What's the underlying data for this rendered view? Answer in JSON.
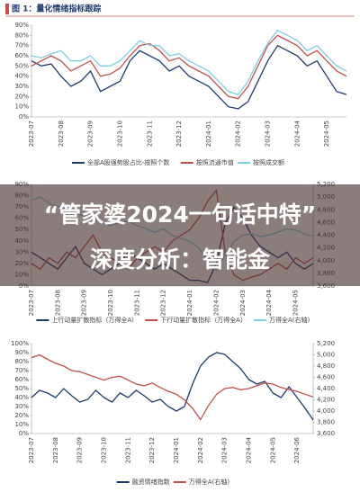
{
  "header": {
    "title": "图 1：量化情绪指标跟踪"
  },
  "banner": {
    "lines": [
      "“管家婆2024一句话中特”",
      "深度分析：智能金"
    ]
  },
  "chart_data": [
    {
      "type": "line",
      "categories": [
        "2023-07",
        null,
        null,
        "2023-08",
        null,
        null,
        "2023-09",
        null,
        null,
        "2023-10",
        null,
        null,
        "2023-11",
        null,
        null,
        "2023-12",
        null,
        null,
        "2024-01",
        null,
        null,
        "2024-02",
        null,
        null,
        "2024-03",
        null,
        null,
        "2024-04",
        null,
        null,
        "2024-05",
        null,
        null
      ],
      "ylim": [
        0,
        90
      ],
      "yticks": [
        {
          "value": 0,
          "label": "0%"
        },
        {
          "value": 10,
          "label": "10%"
        },
        {
          "value": 20,
          "label": "20%"
        },
        {
          "value": 30,
          "label": "30%"
        },
        {
          "value": 40,
          "label": "40%"
        },
        {
          "value": 50,
          "label": "50%"
        },
        {
          "value": 60,
          "label": "60%"
        },
        {
          "value": 70,
          "label": "70%"
        },
        {
          "value": 80,
          "label": "80%"
        },
        {
          "value": 90,
          "label": "90%"
        }
      ],
      "series": [
        {
          "name": "全部A股强势股占比-按照个数",
          "color": "#1f3a6e",
          "values": [
            55,
            50,
            52,
            40,
            30,
            35,
            45,
            25,
            30,
            35,
            55,
            65,
            60,
            55,
            45,
            50,
            40,
            35,
            30,
            20,
            10,
            8,
            15,
            35,
            55,
            70,
            65,
            60,
            50,
            55,
            40,
            25,
            22
          ]
        },
        {
          "name": "按照流通市值",
          "color": "#c0504d",
          "values": [
            50,
            55,
            60,
            55,
            45,
            50,
            55,
            40,
            42,
            48,
            60,
            70,
            72,
            65,
            55,
            58,
            50,
            45,
            40,
            30,
            20,
            18,
            30,
            50,
            70,
            80,
            75,
            70,
            60,
            65,
            55,
            45,
            40
          ]
        },
        {
          "name": "按照成交额",
          "color": "#7fcfe0",
          "values": [
            60,
            58,
            62,
            65,
            55,
            55,
            60,
            50,
            50,
            55,
            65,
            75,
            70,
            70,
            60,
            62,
            55,
            50,
            45,
            35,
            25,
            22,
            35,
            55,
            72,
            85,
            80,
            75,
            65,
            70,
            60,
            50,
            45
          ]
        }
      ]
    },
    {
      "type": "line",
      "categories": [
        "2023-07",
        null,
        null,
        "2023-08",
        null,
        null,
        "2023-09",
        null,
        null,
        "2023-10",
        null,
        null,
        "2023-11",
        null,
        null,
        "2023-12",
        null,
        null,
        "2024-01",
        null,
        null,
        "2024-02",
        null,
        null,
        "2024-03",
        null,
        null,
        "2024-04",
        null,
        null,
        "2024-05",
        null,
        null
      ],
      "ylim": [
        0,
        90
      ],
      "yticks": [
        {
          "value": 0,
          "label": "0%"
        },
        {
          "value": 10,
          "label": "10%"
        },
        {
          "value": 20,
          "label": "20%"
        },
        {
          "value": 30,
          "label": "30%"
        },
        {
          "value": 40,
          "label": "40%"
        },
        {
          "value": 50,
          "label": "50%"
        },
        {
          "value": 60,
          "label": "60%"
        },
        {
          "value": 70,
          "label": "70%"
        },
        {
          "value": 80,
          "label": "80%"
        },
        {
          "value": 90,
          "label": "90%"
        }
      ],
      "y2lim": [
        3600,
        5200
      ],
      "y2ticks": [
        {
          "value": 3600,
          "label": "3,600"
        },
        {
          "value": 3800,
          "label": "3,800"
        },
        {
          "value": 4000,
          "label": "4,000"
        },
        {
          "value": 4200,
          "label": "4,200"
        },
        {
          "value": 4400,
          "label": "4,400"
        },
        {
          "value": 4600,
          "label": "4,600"
        },
        {
          "value": 4800,
          "label": "4,800"
        },
        {
          "value": 5000,
          "label": "5,000"
        },
        {
          "value": 5200,
          "label": "5,200"
        }
      ],
      "series": [
        {
          "name": "上行动量扩散指标（万得全A）",
          "color": "#1f3a6e",
          "values": [
            30,
            25,
            20,
            15,
            25,
            35,
            20,
            15,
            10,
            15,
            20,
            30,
            25,
            20,
            15,
            20,
            15,
            10,
            5,
            5,
            3,
            20,
            55,
            70,
            60,
            45,
            35,
            30,
            25,
            30,
            20,
            15,
            20
          ]
        },
        {
          "name": "下行动量扩散指标（万得全A）",
          "color": "#c0504d",
          "values": [
            20,
            15,
            25,
            20,
            30,
            25,
            35,
            45,
            30,
            25,
            20,
            15,
            25,
            30,
            35,
            30,
            40,
            45,
            50,
            60,
            75,
            85,
            30,
            10,
            5,
            8,
            10,
            15,
            20,
            15,
            25,
            20,
            25
          ]
        },
        {
          "name": "万得全A(右轴)",
          "color": "#7fcfe0",
          "axis": "y2",
          "values": [
            4950,
            5000,
            4900,
            4850,
            4820,
            4750,
            4700,
            4650,
            4600,
            4550,
            4600,
            4620,
            4550,
            4500,
            4450,
            4500,
            4400,
            4350,
            4300,
            4200,
            4000,
            3850,
            4100,
            4300,
            4400,
            4420,
            4380,
            4400,
            4450,
            4500,
            4480,
            4420,
            4380
          ]
        }
      ]
    },
    {
      "type": "line",
      "categories": [
        "2023-07",
        null,
        null,
        "2023-08",
        null,
        null,
        "2023-09",
        null,
        null,
        "2023-10",
        null,
        null,
        "2023-11",
        null,
        null,
        "2023-12",
        null,
        null,
        "2024-01",
        null,
        null,
        "2024-02",
        null,
        null,
        "2024-03",
        null,
        null,
        "2024-04",
        null,
        null,
        "2024-05",
        null,
        null,
        "2024-06",
        null,
        null
      ],
      "ylim": [
        0,
        100
      ],
      "yticks": [
        {
          "value": 0,
          "label": "0%"
        },
        {
          "value": 10,
          "label": "10%"
        },
        {
          "value": 20,
          "label": "20%"
        },
        {
          "value": 30,
          "label": "30%"
        },
        {
          "value": 40,
          "label": "40%"
        },
        {
          "value": 50,
          "label": "50%"
        },
        {
          "value": 60,
          "label": "60%"
        },
        {
          "value": 70,
          "label": "70%"
        },
        {
          "value": 80,
          "label": "80%"
        },
        {
          "value": 90,
          "label": "90%"
        },
        {
          "value": 100,
          "label": "100%"
        }
      ],
      "y2lim": [
        3600,
        5200
      ],
      "y2ticks": [
        {
          "value": 3600,
          "label": "3,600"
        },
        {
          "value": 3800,
          "label": "3,800"
        },
        {
          "value": 4000,
          "label": "4,000"
        },
        {
          "value": 4200,
          "label": "4,200"
        },
        {
          "value": 4400,
          "label": "4,400"
        },
        {
          "value": 4600,
          "label": "4,600"
        },
        {
          "value": 4800,
          "label": "4,800"
        },
        {
          "value": 5000,
          "label": "5,000"
        },
        {
          "value": 5200,
          "label": "5,200"
        }
      ],
      "series": [
        {
          "name": "融资情绪指数",
          "color": "#1f3a6e",
          "values": [
            40,
            48,
            45,
            40,
            50,
            42,
            35,
            38,
            48,
            40,
            35,
            45,
            40,
            48,
            42,
            35,
            38,
            30,
            25,
            30,
            55,
            75,
            85,
            90,
            88,
            80,
            72,
            60,
            55,
            58,
            45,
            40,
            52,
            40,
            28,
            15
          ]
        },
        {
          "name": "万得全A(右轴)",
          "color": "#c0504d",
          "axis": "y2",
          "values": [
            4950,
            5000,
            4920,
            4850,
            4800,
            4720,
            4700,
            4650,
            4600,
            4550,
            4600,
            4620,
            4550,
            4480,
            4450,
            4500,
            4420,
            4350,
            4300,
            4200,
            4050,
            3850,
            4100,
            4300,
            4400,
            4420,
            4380,
            4400,
            4450,
            4500,
            4480,
            4420,
            4380,
            4350,
            4300,
            4250
          ]
        }
      ]
    }
  ]
}
